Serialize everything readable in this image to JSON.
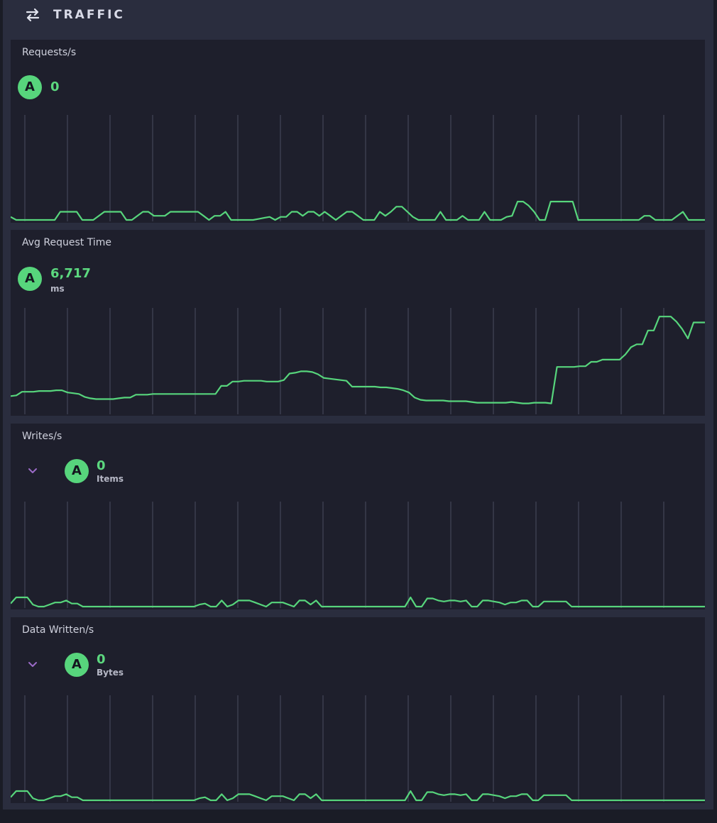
{
  "header": {
    "title": "TRAFFIC",
    "icon": "swap-arrows-icon"
  },
  "colors": {
    "accent": "#57d57c",
    "grid": "#4a4d60",
    "chevron": "#9b6bc8"
  },
  "cards": [
    {
      "title": "Requests/s",
      "badge": "A",
      "value": "0",
      "unit": ""
    },
    {
      "title": "Avg Request Time",
      "badge": "A",
      "value": "6,717",
      "unit": "ms"
    },
    {
      "title": "Writes/s",
      "badge": "A",
      "value": "0",
      "unit": "Items"
    },
    {
      "title": "Data Written/s",
      "badge": "A",
      "value": "0",
      "unit": "Bytes"
    }
  ],
  "chart_data": [
    {
      "type": "line",
      "series_name": "A",
      "ylim": [
        0,
        10
      ],
      "grid": true,
      "values": [
        0.3,
        0,
        0,
        0,
        0,
        0,
        0,
        0,
        0,
        0.8,
        0.8,
        0.8,
        0.8,
        0,
        0,
        0,
        0.4,
        0.8,
        0.8,
        0.8,
        0.8,
        0,
        0,
        0.4,
        0.8,
        0.8,
        0.4,
        0.4,
        0.4,
        0.8,
        0.8,
        0.8,
        0.8,
        0.8,
        0.8,
        0.4,
        0,
        0.4,
        0.4,
        0.8,
        0,
        0,
        0,
        0,
        0,
        0.1,
        0.2,
        0.3,
        0,
        0.3,
        0.3,
        0.8,
        0.8,
        0.4,
        0.8,
        0.8,
        0.4,
        0.8,
        0.4,
        0,
        0.4,
        0.8,
        0.8,
        0.4,
        0,
        0,
        0,
        0.8,
        0.4,
        0.8,
        1.3,
        1.3,
        0.8,
        0.3,
        0,
        0,
        0,
        0,
        0.8,
        0,
        0,
        0,
        0.4,
        0,
        0,
        0,
        0.8,
        0,
        0,
        0,
        0.3,
        0.4,
        1.8,
        1.8,
        1.4,
        0.8,
        0,
        0,
        1.8,
        1.8,
        1.8,
        1.8,
        1.8,
        0,
        0,
        0,
        0,
        0,
        0,
        0,
        0,
        0,
        0,
        0,
        0,
        0.4,
        0.4,
        0,
        0,
        0,
        0,
        0.4,
        0.8,
        0,
        0,
        0,
        0
      ]
    },
    {
      "type": "line",
      "series_name": "A",
      "ylim": [
        0,
        14000
      ],
      "grid": true,
      "values": [
        2300,
        2400,
        2900,
        2900,
        2900,
        3000,
        3000,
        3000,
        3100,
        3100,
        2800,
        2700,
        2600,
        2200,
        2000,
        1900,
        1900,
        1900,
        1900,
        2000,
        2100,
        2100,
        2500,
        2500,
        2500,
        2600,
        2600,
        2600,
        2600,
        2600,
        2600,
        2600,
        2600,
        2600,
        2600,
        2600,
        2600,
        3700,
        3700,
        4300,
        4300,
        4400,
        4400,
        4400,
        4400,
        4300,
        4300,
        4300,
        4500,
        5400,
        5500,
        5700,
        5700,
        5600,
        5300,
        4800,
        4700,
        4600,
        4500,
        4400,
        3600,
        3600,
        3600,
        3600,
        3600,
        3500,
        3500,
        3400,
        3300,
        3100,
        2800,
        2100,
        1800,
        1700,
        1700,
        1700,
        1700,
        1600,
        1600,
        1600,
        1600,
        1500,
        1400,
        1400,
        1400,
        1400,
        1400,
        1400,
        1500,
        1400,
        1300,
        1300,
        1400,
        1400,
        1400,
        1300,
        6300,
        6300,
        6300,
        6300,
        6400,
        6400,
        7000,
        7000,
        7300,
        7300,
        7300,
        7300,
        8000,
        9000,
        9400,
        9400,
        11300,
        11300,
        13200,
        13200,
        13200,
        12500,
        11500,
        10200,
        12400,
        12400,
        12400
      ]
    },
    {
      "type": "line",
      "series_name": "A",
      "ylim": [
        0,
        10
      ],
      "grid": true,
      "values": [
        0.3,
        0.9,
        0.9,
        0.9,
        0.2,
        0,
        0,
        0.2,
        0.4,
        0.4,
        0.6,
        0.3,
        0.3,
        0,
        0,
        0,
        0,
        0,
        0,
        0,
        0,
        0,
        0,
        0,
        0,
        0,
        0,
        0,
        0,
        0,
        0,
        0,
        0,
        0,
        0.2,
        0.3,
        0,
        0,
        0.6,
        0,
        0.2,
        0.6,
        0.6,
        0.6,
        0.4,
        0.2,
        0,
        0.4,
        0.4,
        0.4,
        0.2,
        0,
        0.6,
        0.6,
        0.2,
        0.6,
        0,
        0,
        0,
        0,
        0,
        0,
        0,
        0,
        0,
        0,
        0,
        0,
        0,
        0,
        0,
        0,
        0.9,
        0,
        0,
        0.8,
        0.8,
        0.6,
        0.5,
        0.6,
        0.6,
        0.5,
        0.6,
        0,
        0,
        0.6,
        0.6,
        0.5,
        0.4,
        0.2,
        0.4,
        0.4,
        0.6,
        0.6,
        0,
        0,
        0.5,
        0.5,
        0.5,
        0.5,
        0.5,
        0,
        0,
        0,
        0,
        0,
        0,
        0,
        0,
        0,
        0,
        0,
        0,
        0,
        0,
        0,
        0,
        0,
        0,
        0,
        0,
        0,
        0,
        0,
        0,
        0
      ]
    },
    {
      "type": "line",
      "series_name": "A",
      "ylim": [
        0,
        10
      ],
      "grid": true,
      "values": [
        0.3,
        0.9,
        0.9,
        0.9,
        0.2,
        0,
        0,
        0.2,
        0.4,
        0.4,
        0.6,
        0.3,
        0.3,
        0,
        0,
        0,
        0,
        0,
        0,
        0,
        0,
        0,
        0,
        0,
        0,
        0,
        0,
        0,
        0,
        0,
        0,
        0,
        0,
        0,
        0.2,
        0.3,
        0,
        0,
        0.6,
        0,
        0.2,
        0.6,
        0.6,
        0.6,
        0.4,
        0.2,
        0,
        0.4,
        0.4,
        0.4,
        0.2,
        0,
        0.6,
        0.6,
        0.2,
        0.6,
        0,
        0,
        0,
        0,
        0,
        0,
        0,
        0,
        0,
        0,
        0,
        0,
        0,
        0,
        0,
        0,
        0.9,
        0,
        0,
        0.8,
        0.8,
        0.6,
        0.5,
        0.6,
        0.6,
        0.5,
        0.6,
        0,
        0,
        0.6,
        0.6,
        0.5,
        0.4,
        0.2,
        0.4,
        0.4,
        0.6,
        0.6,
        0,
        0,
        0.5,
        0.5,
        0.5,
        0.5,
        0.5,
        0,
        0,
        0,
        0,
        0,
        0,
        0,
        0,
        0,
        0,
        0,
        0,
        0,
        0,
        0,
        0,
        0,
        0,
        0,
        0,
        0,
        0,
        0,
        0,
        0
      ]
    }
  ]
}
